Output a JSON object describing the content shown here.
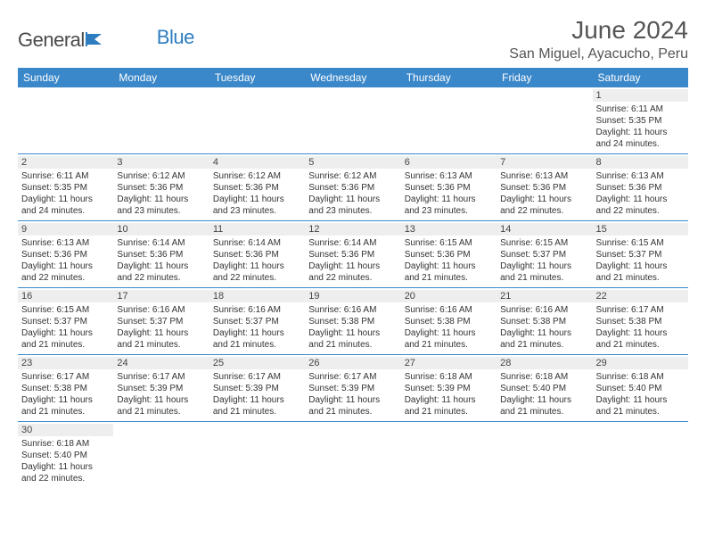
{
  "brand": {
    "name_part1": "General",
    "name_part2": "Blue",
    "logo_color": "#2d7dc0",
    "text_color": "#4a4a4a"
  },
  "header": {
    "month_title": "June 2024",
    "location": "San Miguel, Ayacucho, Peru"
  },
  "styling": {
    "header_row_bg": "#3a87c9",
    "header_row_text": "#ffffff",
    "daynum_bg": "#eeeeee",
    "cell_border": "#3a87c9",
    "body_text": "#333333",
    "font_day_header": 12,
    "font_cell": 10,
    "font_title": 28,
    "font_location": 16
  },
  "day_headers": [
    "Sunday",
    "Monday",
    "Tuesday",
    "Wednesday",
    "Thursday",
    "Friday",
    "Saturday"
  ],
  "weeks": [
    [
      {
        "empty": true
      },
      {
        "empty": true
      },
      {
        "empty": true
      },
      {
        "empty": true
      },
      {
        "empty": true
      },
      {
        "empty": true
      },
      {
        "day": "1",
        "sunrise": "Sunrise: 6:11 AM",
        "sunset": "Sunset: 5:35 PM",
        "daylight1": "Daylight: 11 hours",
        "daylight2": "and 24 minutes."
      }
    ],
    [
      {
        "day": "2",
        "sunrise": "Sunrise: 6:11 AM",
        "sunset": "Sunset: 5:35 PM",
        "daylight1": "Daylight: 11 hours",
        "daylight2": "and 24 minutes."
      },
      {
        "day": "3",
        "sunrise": "Sunrise: 6:12 AM",
        "sunset": "Sunset: 5:36 PM",
        "daylight1": "Daylight: 11 hours",
        "daylight2": "and 23 minutes."
      },
      {
        "day": "4",
        "sunrise": "Sunrise: 6:12 AM",
        "sunset": "Sunset: 5:36 PM",
        "daylight1": "Daylight: 11 hours",
        "daylight2": "and 23 minutes."
      },
      {
        "day": "5",
        "sunrise": "Sunrise: 6:12 AM",
        "sunset": "Sunset: 5:36 PM",
        "daylight1": "Daylight: 11 hours",
        "daylight2": "and 23 minutes."
      },
      {
        "day": "6",
        "sunrise": "Sunrise: 6:13 AM",
        "sunset": "Sunset: 5:36 PM",
        "daylight1": "Daylight: 11 hours",
        "daylight2": "and 23 minutes."
      },
      {
        "day": "7",
        "sunrise": "Sunrise: 6:13 AM",
        "sunset": "Sunset: 5:36 PM",
        "daylight1": "Daylight: 11 hours",
        "daylight2": "and 22 minutes."
      },
      {
        "day": "8",
        "sunrise": "Sunrise: 6:13 AM",
        "sunset": "Sunset: 5:36 PM",
        "daylight1": "Daylight: 11 hours",
        "daylight2": "and 22 minutes."
      }
    ],
    [
      {
        "day": "9",
        "sunrise": "Sunrise: 6:13 AM",
        "sunset": "Sunset: 5:36 PM",
        "daylight1": "Daylight: 11 hours",
        "daylight2": "and 22 minutes."
      },
      {
        "day": "10",
        "sunrise": "Sunrise: 6:14 AM",
        "sunset": "Sunset: 5:36 PM",
        "daylight1": "Daylight: 11 hours",
        "daylight2": "and 22 minutes."
      },
      {
        "day": "11",
        "sunrise": "Sunrise: 6:14 AM",
        "sunset": "Sunset: 5:36 PM",
        "daylight1": "Daylight: 11 hours",
        "daylight2": "and 22 minutes."
      },
      {
        "day": "12",
        "sunrise": "Sunrise: 6:14 AM",
        "sunset": "Sunset: 5:36 PM",
        "daylight1": "Daylight: 11 hours",
        "daylight2": "and 22 minutes."
      },
      {
        "day": "13",
        "sunrise": "Sunrise: 6:15 AM",
        "sunset": "Sunset: 5:36 PM",
        "daylight1": "Daylight: 11 hours",
        "daylight2": "and 21 minutes."
      },
      {
        "day": "14",
        "sunrise": "Sunrise: 6:15 AM",
        "sunset": "Sunset: 5:37 PM",
        "daylight1": "Daylight: 11 hours",
        "daylight2": "and 21 minutes."
      },
      {
        "day": "15",
        "sunrise": "Sunrise: 6:15 AM",
        "sunset": "Sunset: 5:37 PM",
        "daylight1": "Daylight: 11 hours",
        "daylight2": "and 21 minutes."
      }
    ],
    [
      {
        "day": "16",
        "sunrise": "Sunrise: 6:15 AM",
        "sunset": "Sunset: 5:37 PM",
        "daylight1": "Daylight: 11 hours",
        "daylight2": "and 21 minutes."
      },
      {
        "day": "17",
        "sunrise": "Sunrise: 6:16 AM",
        "sunset": "Sunset: 5:37 PM",
        "daylight1": "Daylight: 11 hours",
        "daylight2": "and 21 minutes."
      },
      {
        "day": "18",
        "sunrise": "Sunrise: 6:16 AM",
        "sunset": "Sunset: 5:37 PM",
        "daylight1": "Daylight: 11 hours",
        "daylight2": "and 21 minutes."
      },
      {
        "day": "19",
        "sunrise": "Sunrise: 6:16 AM",
        "sunset": "Sunset: 5:38 PM",
        "daylight1": "Daylight: 11 hours",
        "daylight2": "and 21 minutes."
      },
      {
        "day": "20",
        "sunrise": "Sunrise: 6:16 AM",
        "sunset": "Sunset: 5:38 PM",
        "daylight1": "Daylight: 11 hours",
        "daylight2": "and 21 minutes."
      },
      {
        "day": "21",
        "sunrise": "Sunrise: 6:16 AM",
        "sunset": "Sunset: 5:38 PM",
        "daylight1": "Daylight: 11 hours",
        "daylight2": "and 21 minutes."
      },
      {
        "day": "22",
        "sunrise": "Sunrise: 6:17 AM",
        "sunset": "Sunset: 5:38 PM",
        "daylight1": "Daylight: 11 hours",
        "daylight2": "and 21 minutes."
      }
    ],
    [
      {
        "day": "23",
        "sunrise": "Sunrise: 6:17 AM",
        "sunset": "Sunset: 5:38 PM",
        "daylight1": "Daylight: 11 hours",
        "daylight2": "and 21 minutes."
      },
      {
        "day": "24",
        "sunrise": "Sunrise: 6:17 AM",
        "sunset": "Sunset: 5:39 PM",
        "daylight1": "Daylight: 11 hours",
        "daylight2": "and 21 minutes."
      },
      {
        "day": "25",
        "sunrise": "Sunrise: 6:17 AM",
        "sunset": "Sunset: 5:39 PM",
        "daylight1": "Daylight: 11 hours",
        "daylight2": "and 21 minutes."
      },
      {
        "day": "26",
        "sunrise": "Sunrise: 6:17 AM",
        "sunset": "Sunset: 5:39 PM",
        "daylight1": "Daylight: 11 hours",
        "daylight2": "and 21 minutes."
      },
      {
        "day": "27",
        "sunrise": "Sunrise: 6:18 AM",
        "sunset": "Sunset: 5:39 PM",
        "daylight1": "Daylight: 11 hours",
        "daylight2": "and 21 minutes."
      },
      {
        "day": "28",
        "sunrise": "Sunrise: 6:18 AM",
        "sunset": "Sunset: 5:40 PM",
        "daylight1": "Daylight: 11 hours",
        "daylight2": "and 21 minutes."
      },
      {
        "day": "29",
        "sunrise": "Sunrise: 6:18 AM",
        "sunset": "Sunset: 5:40 PM",
        "daylight1": "Daylight: 11 hours",
        "daylight2": "and 21 minutes."
      }
    ],
    [
      {
        "day": "30",
        "sunrise": "Sunrise: 6:18 AM",
        "sunset": "Sunset: 5:40 PM",
        "daylight1": "Daylight: 11 hours",
        "daylight2": "and 22 minutes."
      },
      {
        "empty": true,
        "trailing": true
      },
      {
        "empty": true,
        "trailing": true
      },
      {
        "empty": true,
        "trailing": true
      },
      {
        "empty": true,
        "trailing": true
      },
      {
        "empty": true,
        "trailing": true
      },
      {
        "empty": true,
        "trailing": true
      }
    ]
  ]
}
